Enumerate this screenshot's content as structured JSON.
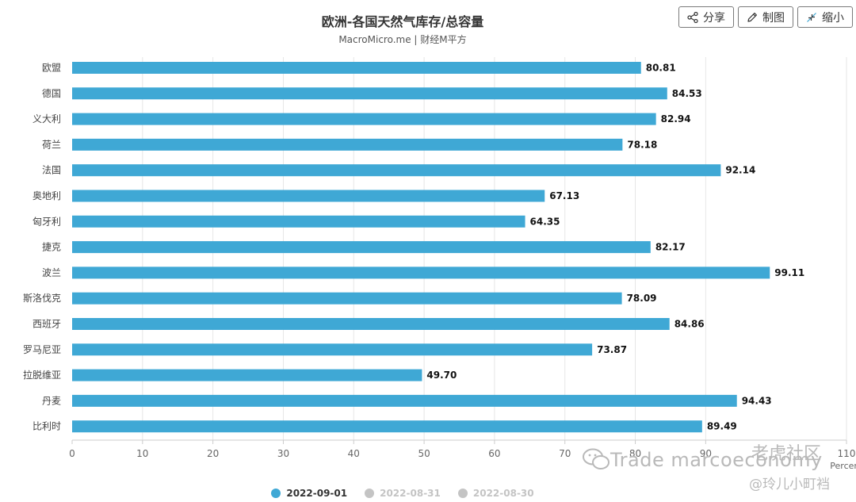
{
  "chart_title": "欧洲-各国天然气库存/总容量",
  "chart_subtitle": "MacroMicro.me | 财经M平方",
  "toolbar": {
    "share_label": "分享",
    "draw_label": "制图",
    "shrink_label": "缩小"
  },
  "colors": {
    "bar": "#3fa8d5",
    "inactive": "#c4c4c4",
    "grid": "#e6e6e6"
  },
  "legend": [
    {
      "label": "2022-09-01",
      "active": true
    },
    {
      "label": "2022-08-31",
      "active": false
    },
    {
      "label": "2022-08-30",
      "active": false
    }
  ],
  "chart_data": {
    "type": "bar",
    "orientation": "horizontal",
    "title": "欧洲-各国天然气库存/总容量",
    "subtitle": "MacroMicro.me | 财经M平方",
    "categories": [
      "欧盟",
      "德国",
      "义大利",
      "荷兰",
      "法国",
      "奥地利",
      "匈牙利",
      "捷克",
      "波兰",
      "斯洛伐克",
      "西班牙",
      "罗马尼亚",
      "拉脱维亚",
      "丹麦",
      "比利时"
    ],
    "series": [
      {
        "name": "2022-09-01",
        "values": [
          80.81,
          84.53,
          82.94,
          78.18,
          92.14,
          67.13,
          64.35,
          82.17,
          99.11,
          78.09,
          84.86,
          73.87,
          49.7,
          94.43,
          89.49
        ]
      }
    ],
    "value_labels": [
      "80.81",
      "84.53",
      "82.94",
      "78.18",
      "92.14",
      "67.13",
      "64.35",
      "82.17",
      "99.11",
      "78.09",
      "84.86",
      "73.87",
      "49.70",
      "94.43",
      "89.49"
    ],
    "xlim": [
      0,
      110
    ],
    "xticks": [
      0,
      10,
      20,
      30,
      40,
      50,
      60,
      70,
      80,
      90,
      110
    ],
    "xlabel": "Percent",
    "grid": true
  },
  "watermark": {
    "main": "Trade marcoeconomy",
    "top": "老虎社区",
    "sub": "@玲儿小町裆"
  }
}
